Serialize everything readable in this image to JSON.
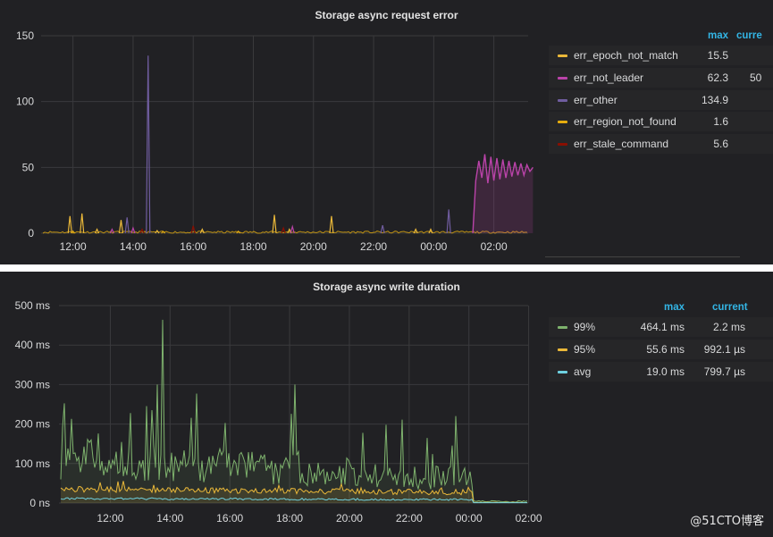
{
  "chart_data": [
    {
      "type": "line",
      "title": "Storage async request error",
      "y_ticks": [
        "150",
        "100",
        "50",
        "0"
      ],
      "ylim": [
        0,
        150
      ],
      "x_ticks": [
        "12:00",
        "14:00",
        "16:00",
        "18:00",
        "20:00",
        "22:00",
        "00:00",
        "02:00"
      ],
      "grid": true,
      "legend_placement": "right",
      "legend_columns": [
        "max",
        "current"
      ],
      "series": [
        {
          "name": "err_epoch_not_match",
          "color": "#eab839",
          "max": "15.5",
          "current": "",
          "spikes": [
            [
              11.9,
              13
            ],
            [
              12.3,
              15
            ],
            [
              12.8,
              3
            ],
            [
              13.6,
              10
            ],
            [
              14.8,
              2
            ],
            [
              16.3,
              3
            ],
            [
              18.7,
              14
            ],
            [
              19.2,
              3
            ],
            [
              20.6,
              13
            ],
            [
              23.4,
              3
            ],
            [
              23.9,
              3
            ]
          ]
        },
        {
          "name": "err_not_leader",
          "color": "#ba43a9",
          "max": "62.3",
          "current": "50",
          "points": [
            [
              1.3,
              0
            ],
            [
              1.4,
              40
            ],
            [
              1.5,
              55
            ],
            [
              1.6,
              42
            ],
            [
              1.7,
              60
            ],
            [
              1.8,
              38
            ],
            [
              1.9,
              58
            ],
            [
              2.0,
              40
            ],
            [
              2.1,
              57
            ],
            [
              2.2,
              41
            ],
            [
              2.3,
              56
            ],
            [
              2.4,
              42
            ],
            [
              2.5,
              55
            ],
            [
              2.6,
              43
            ],
            [
              2.7,
              54
            ],
            [
              2.8,
              44
            ],
            [
              2.9,
              53
            ],
            [
              3.0,
              44
            ],
            [
              3.1,
              52
            ],
            [
              3.2,
              47
            ],
            [
              3.3,
              50
            ]
          ],
          "spikes": [
            [
              13.3,
              3
            ],
            [
              14.0,
              4
            ],
            [
              19.3,
              5
            ]
          ]
        },
        {
          "name": "err_other",
          "color": "#705da0",
          "max": "134.9",
          "current": "",
          "spikes": [
            [
              13.8,
              12
            ],
            [
              14.5,
              134.9
            ],
            [
              22.3,
              6
            ],
            [
              0.5,
              18
            ]
          ]
        },
        {
          "name": "err_region_not_found",
          "color": "#e5ac0e",
          "max": "1.6",
          "current": "",
          "spikes": [
            [
              12.0,
              1.6
            ],
            [
              15.0,
              1.2
            ],
            [
              17.5,
              1.5
            ]
          ]
        },
        {
          "name": "err_stale_command",
          "color": "#890f02",
          "max": "5.6",
          "current": "",
          "spikes": [
            [
              14.3,
              3
            ],
            [
              16.0,
              5.6
            ],
            [
              19.0,
              4
            ]
          ]
        }
      ]
    },
    {
      "type": "line",
      "title": "Storage async write duration",
      "y_ticks": [
        "500 ms",
        "400 ms",
        "300 ms",
        "200 ms",
        "100 ms",
        "0 ns"
      ],
      "ylim": [
        0,
        500
      ],
      "x_ticks": [
        "12:00",
        "14:00",
        "16:00",
        "18:00",
        "20:00",
        "22:00",
        "00:00",
        "02:00"
      ],
      "grid": true,
      "legend_placement": "right",
      "legend_columns": [
        "max",
        "current"
      ],
      "series": [
        {
          "name": "99%",
          "color": "#7eb26d",
          "max": "464.1 ms",
          "current": "2.2 ms"
        },
        {
          "name": "95%",
          "color": "#eab839",
          "max": "55.6 ms",
          "current": "992.1 µs"
        },
        {
          "name": "avg",
          "color": "#6ed0e0",
          "max": "19.0 ms",
          "current": "799.7 µs"
        }
      ]
    }
  ],
  "legend_headers": {
    "max": "max",
    "current": "current",
    "current_truncated": "curre"
  },
  "watermark": "@51CTO博客"
}
